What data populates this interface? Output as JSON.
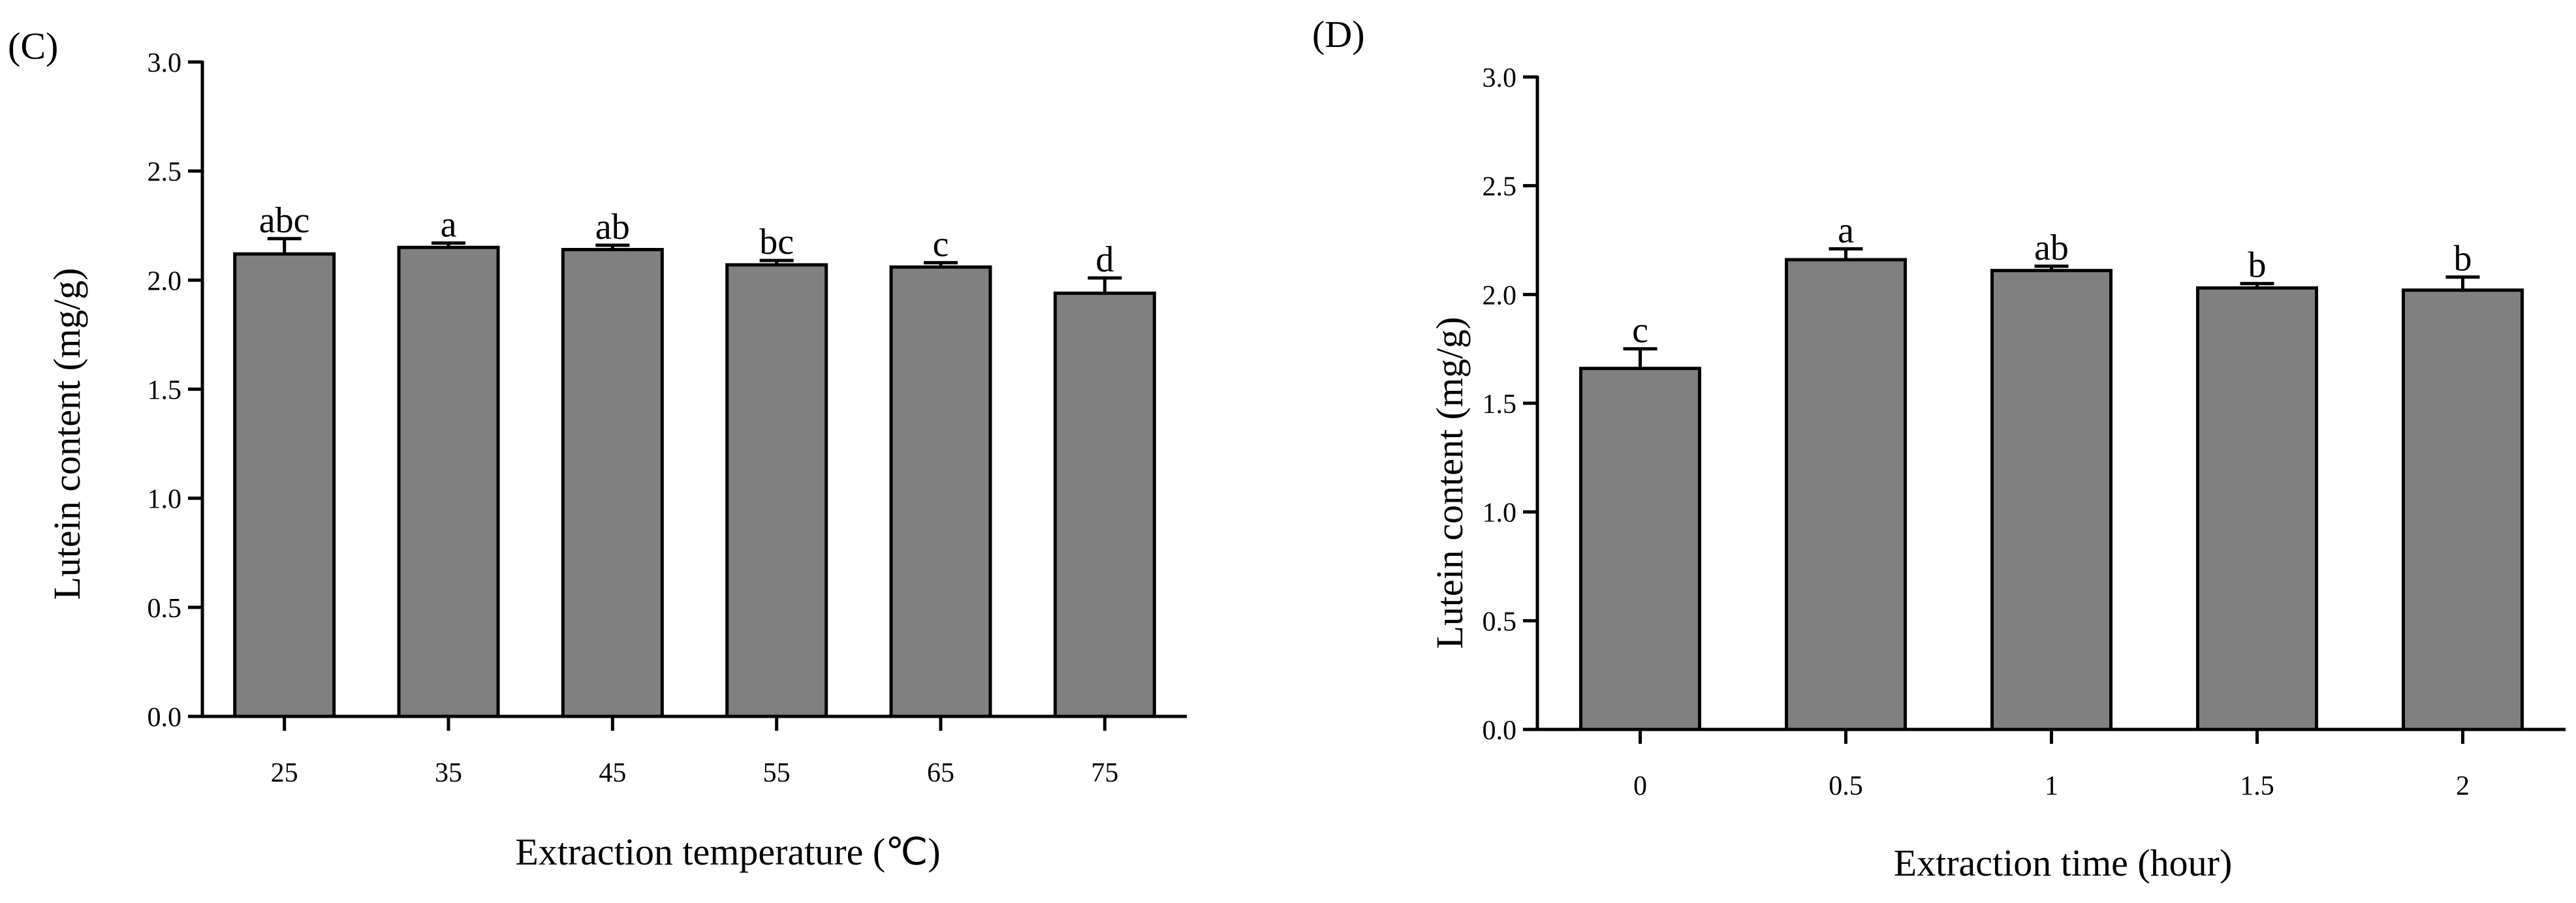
{
  "chart_data": [
    {
      "type": "bar",
      "panel_label": "(C)",
      "categories": [
        "25",
        "35",
        "45",
        "55",
        "65",
        "75"
      ],
      "values": [
        2.12,
        2.15,
        2.14,
        2.07,
        2.06,
        1.94
      ],
      "errors": [
        0.07,
        0.02,
        0.02,
        0.02,
        0.02,
        0.07
      ],
      "significance": [
        "abc",
        "a",
        "ab",
        "bc",
        "c",
        "d"
      ],
      "xlabel": "Extraction temperature (",
      "xlabel_unit": "℃",
      "xlabel_close": ")",
      "ylabel": "Lutein content (mg/g)",
      "ylim": [
        0,
        3.0
      ],
      "yticks": [
        "0.0",
        "0.5",
        "1.0",
        "1.5",
        "2.0",
        "2.5",
        "3.0"
      ],
      "grid": false,
      "colors": {
        "bar": "#808080",
        "edge": "#000000"
      }
    },
    {
      "type": "bar",
      "panel_label": "(D)",
      "categories": [
        "0",
        "0.5",
        "1",
        "1.5",
        "2"
      ],
      "values": [
        1.66,
        2.16,
        2.11,
        2.03,
        2.02
      ],
      "errors": [
        0.09,
        0.05,
        0.02,
        0.02,
        0.06
      ],
      "significance": [
        "c",
        "a",
        "ab",
        "b",
        "b"
      ],
      "xlabel": "Extraction time (hour)",
      "ylabel": "Lutein content (mg/g)",
      "ylim": [
        0,
        3.0
      ],
      "yticks": [
        "0.0",
        "0.5",
        "1.0",
        "1.5",
        "2.0",
        "2.5",
        "3.0"
      ],
      "grid": false,
      "colors": {
        "bar": "#808080",
        "edge": "#000000"
      }
    }
  ]
}
